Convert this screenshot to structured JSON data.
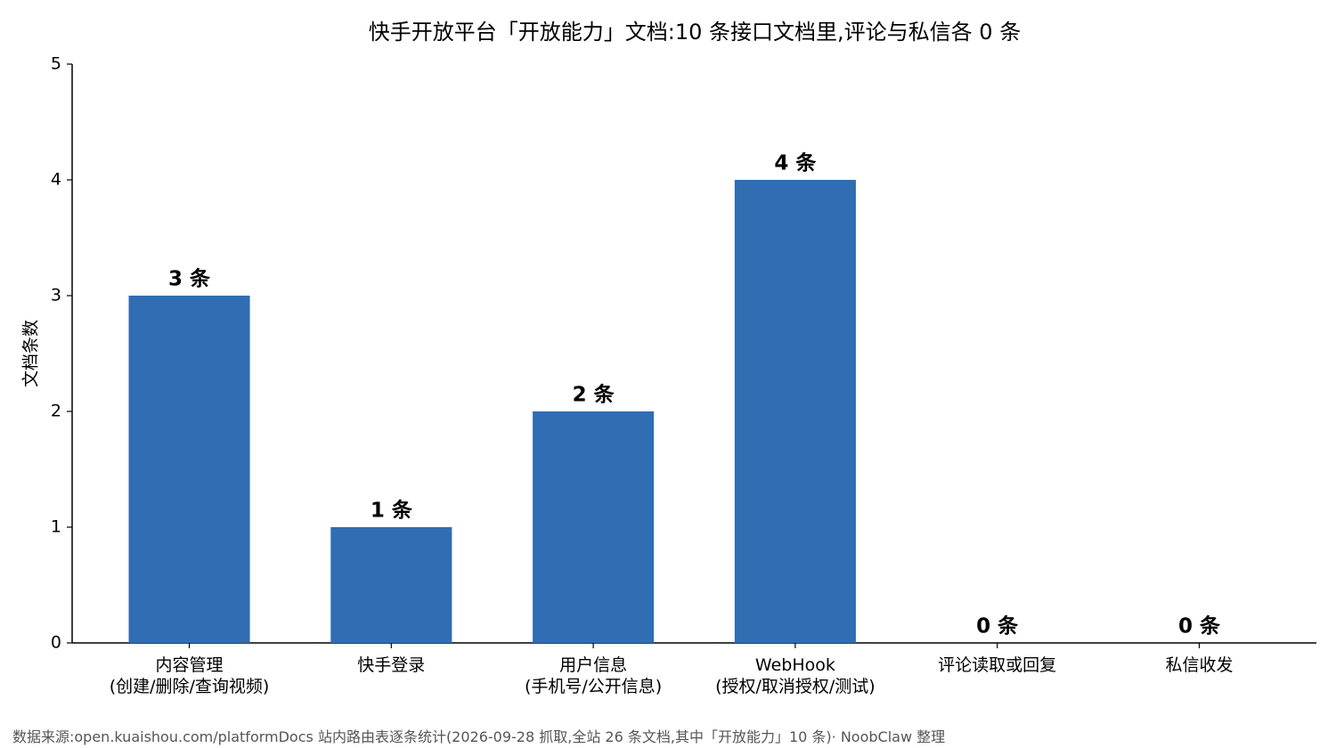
{
  "chart_data": {
    "type": "bar",
    "title": "快手开放平台「开放能力」文档:10 条接口文档里,评论与私信各 0 条",
    "y_label": "文档条数",
    "categories": [
      "内容管理\n(创建/删除/查询视频)",
      "快手登录",
      "用户信息\n(手机号/公开信息)",
      "WebHook\n(授权/取消授权/测试)",
      "评论读取或回复",
      "私信收发"
    ],
    "values": [
      3,
      1,
      2,
      4,
      0,
      0
    ],
    "value_labels": [
      "3 条",
      "1 条",
      "2 条",
      "4 条",
      "0 条",
      "0 条"
    ],
    "color": "#306db3",
    "ylim": [
      0,
      5
    ],
    "yticks": [
      0,
      1,
      2,
      3,
      4,
      5
    ],
    "grid": false,
    "source": "数据来源:open.kuaishou.com/platformDocs 站内路由表逐条统计(2026-09-28 抓取,全站 26 条文档,其中「开放能力」10 条)· NoobClaw 整理"
  }
}
